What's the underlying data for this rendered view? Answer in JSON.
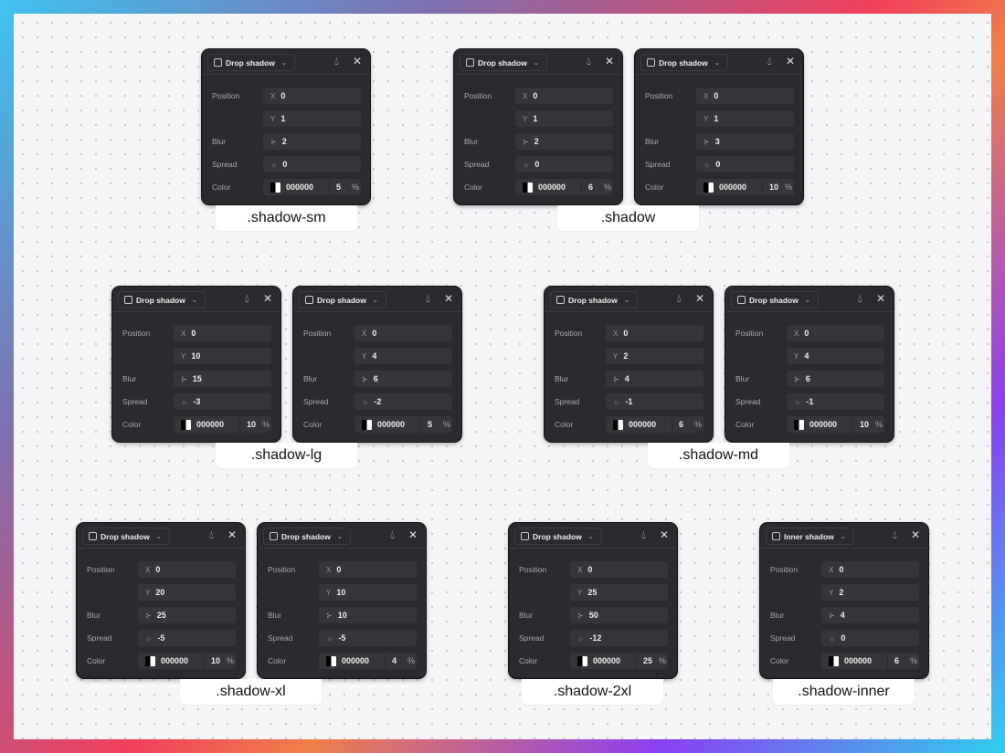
{
  "labels": {
    "position": "Position",
    "x": "X",
    "y": "Y",
    "blur": "Blur",
    "spread": "Spread",
    "color": "Color",
    "percent": "%"
  },
  "icons": {
    "header": "square-icon",
    "chevron": "chevron-down-icon",
    "drop": "drop-icon",
    "close": "close-icon",
    "blur": "blur-grid-icon",
    "spread": "sun-icon",
    "swatch": "color-swatch-icon"
  },
  "panels": [
    {
      "type": "Drop shadow",
      "x": "0",
      "y": "1",
      "blur": "2",
      "spread": "0",
      "color": "000000",
      "opacity": "5"
    },
    {
      "type": "Drop shadow",
      "x": "0",
      "y": "1",
      "blur": "2",
      "spread": "0",
      "color": "000000",
      "opacity": "6"
    },
    {
      "type": "Drop shadow",
      "x": "0",
      "y": "1",
      "blur": "3",
      "spread": "0",
      "color": "000000",
      "opacity": "10"
    },
    {
      "type": "Drop shadow",
      "x": "0",
      "y": "10",
      "blur": "15",
      "spread": "-3",
      "color": "000000",
      "opacity": "10"
    },
    {
      "type": "Drop shadow",
      "x": "0",
      "y": "4",
      "blur": "6",
      "spread": "-2",
      "color": "000000",
      "opacity": "5"
    },
    {
      "type": "Drop shadow",
      "x": "0",
      "y": "2",
      "blur": "4",
      "spread": "-1",
      "color": "000000",
      "opacity": "6"
    },
    {
      "type": "Drop shadow",
      "x": "0",
      "y": "4",
      "blur": "6",
      "spread": "-1",
      "color": "000000",
      "opacity": "10"
    },
    {
      "type": "Drop shadow",
      "x": "0",
      "y": "20",
      "blur": "25",
      "spread": "-5",
      "color": "000000",
      "opacity": "10"
    },
    {
      "type": "Drop shadow",
      "x": "0",
      "y": "10",
      "blur": "10",
      "spread": "-5",
      "color": "000000",
      "opacity": "4"
    },
    {
      "type": "Drop shadow",
      "x": "0",
      "y": "25",
      "blur": "50",
      "spread": "-12",
      "color": "000000",
      "opacity": "25"
    },
    {
      "type": "Inner shadow",
      "x": "0",
      "y": "2",
      "blur": "4",
      "spread": "0",
      "color": "000000",
      "opacity": "6"
    }
  ],
  "tags": [
    ".shadow-sm",
    ".shadow",
    ".shadow-lg",
    ".shadow-md",
    ".shadow-xl",
    ".shadow-2xl",
    ".shadow-inner"
  ]
}
